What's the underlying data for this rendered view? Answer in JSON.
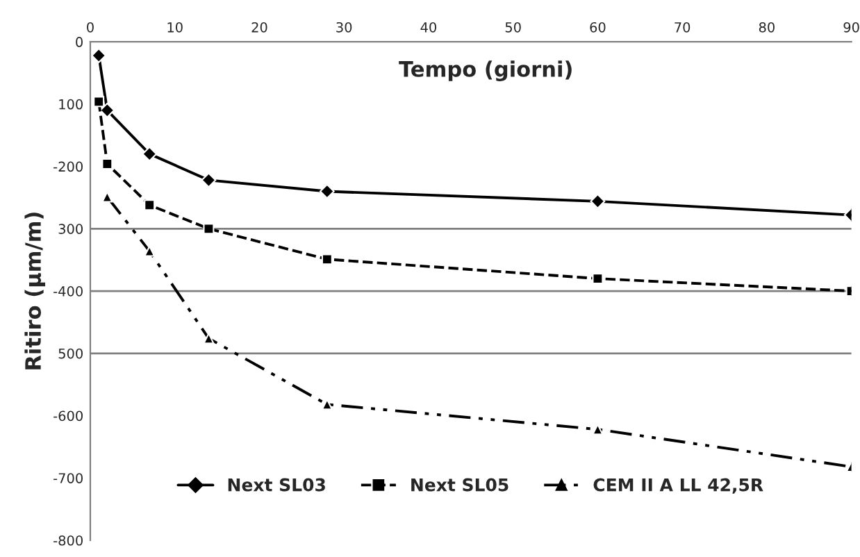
{
  "chart_data": {
    "type": "line",
    "xlabel": "Tempo (giorni)",
    "ylabel": "Ritiro (µm/m)",
    "xlim": [
      0,
      90
    ],
    "xticks": [
      0,
      10,
      20,
      30,
      40,
      50,
      60,
      70,
      80,
      90
    ],
    "ylim": [
      -800,
      0
    ],
    "yticks": [
      0,
      {
        "value": -100,
        "label": "100"
      },
      -200,
      {
        "value": -300,
        "label": "300"
      },
      -400,
      {
        "value": -500,
        "label": "500"
      },
      -600,
      -700,
      -800
    ],
    "ref_lines": [
      {
        "axis": "y",
        "value": -300,
        "color": "#808080"
      },
      {
        "axis": "y",
        "value": -400,
        "color": "#808080"
      },
      {
        "axis": "y",
        "value": -500,
        "color": "#808080"
      }
    ],
    "legend": "bottom",
    "grid": false,
    "series": [
      {
        "name": "Next SL03",
        "color": "#000000",
        "marker": "diamond",
        "line_style": "solid",
        "x": [
          1,
          2,
          7,
          14,
          28,
          60,
          90
        ],
        "values": [
          -22,
          -110,
          -180,
          -222,
          -240,
          -256,
          -278
        ]
      },
      {
        "name": "Next SL05",
        "color": "#000000",
        "marker": "square",
        "line_style": "dashed",
        "x": [
          1,
          2,
          7,
          14,
          28,
          60,
          90
        ],
        "values": [
          -96,
          -196,
          -262,
          -300,
          -349,
          -380,
          -400
        ]
      },
      {
        "name": "CEM II A LL 42,5R",
        "color": "#000000",
        "marker": "triangle",
        "line_style": "dashdot",
        "x": [
          2,
          7,
          14,
          28,
          60,
          90
        ],
        "values": [
          -249,
          -336,
          -476,
          -582,
          -622,
          -682
        ]
      }
    ]
  }
}
